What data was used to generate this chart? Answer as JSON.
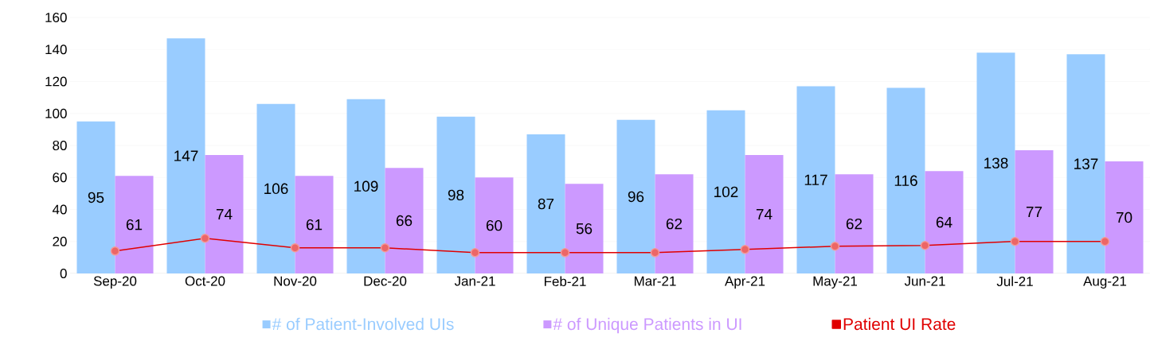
{
  "chart_data": {
    "type": "bar",
    "categories": [
      "Sep-20",
      "Oct-20",
      "Nov-20",
      "Dec-20",
      "Jan-21",
      "Feb-21",
      "Mar-21",
      "Apr-21",
      "May-21",
      "Jun-21",
      "Jul-21",
      "Aug-21"
    ],
    "series": [
      {
        "name": "# of Patient-Involved UIs",
        "color": "#99ccff",
        "values": [
          95,
          147,
          106,
          109,
          98,
          87,
          96,
          102,
          117,
          116,
          138,
          137
        ],
        "value_labels": [
          "95",
          "147",
          "106",
          "109",
          "98",
          "87",
          "96",
          "102",
          "117",
          "116",
          "138",
          "137"
        ]
      },
      {
        "name": "# of Unique Patients in UI",
        "color": "#cc99ff",
        "values": [
          61,
          74,
          61,
          66,
          60,
          56,
          62,
          74,
          62,
          64,
          77,
          70
        ],
        "value_labels": [
          "61",
          "74",
          "61",
          "66",
          "60",
          "56",
          "62",
          "74",
          "62",
          "64",
          "77",
          "70"
        ]
      },
      {
        "name": "Patient UI Rate",
        "type": "line",
        "color": "#e00000",
        "marker": "circle",
        "values": [
          14,
          22,
          16,
          16,
          13,
          13,
          13,
          15,
          17,
          17.5,
          20,
          20
        ]
      }
    ],
    "ylim": [
      0,
      160
    ],
    "yticks": [
      0,
      20,
      40,
      60,
      80,
      100,
      120,
      140,
      160
    ],
    "grid": "y",
    "legend": "bottom"
  }
}
